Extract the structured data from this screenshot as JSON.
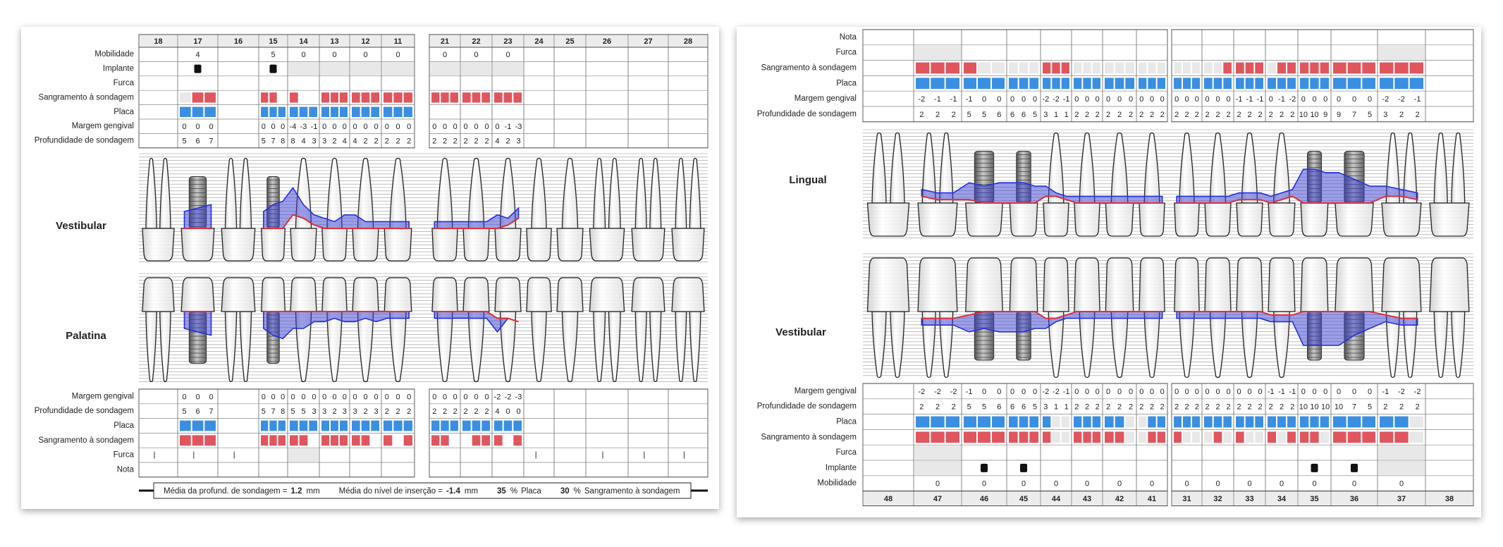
{
  "left": {
    "teeth": [
      18,
      17,
      16,
      15,
      14,
      13,
      12,
      11,
      21,
      22,
      23,
      24,
      25,
      26,
      27,
      28
    ],
    "mobility": {
      "label": "Mobilidade",
      "values": [
        null,
        4,
        null,
        5,
        0,
        0,
        0,
        0,
        0,
        0,
        0,
        null,
        null,
        null,
        null,
        null
      ]
    },
    "implant": {
      "label": "Implante"
    },
    "furcation": {
      "label": "Furca"
    },
    "bleeding_top": {
      "label": "Sangramento à sondagem"
    },
    "plaque_top": {
      "label": "Placa"
    },
    "margin_top": {
      "label": "Margem gengival",
      "values": [
        null,
        [
          0,
          0,
          0
        ],
        null,
        [
          0,
          0,
          0
        ],
        [
          -4,
          -3,
          -1
        ],
        [
          0,
          0,
          0
        ],
        [
          0,
          0,
          0
        ],
        [
          0,
          0,
          0
        ],
        [
          0,
          0,
          0
        ],
        [
          0,
          0,
          0
        ],
        [
          0,
          -1,
          -3
        ],
        null,
        null,
        null,
        null,
        null
      ]
    },
    "depth_top": {
      "label": "Profundidade de sondagem",
      "values": [
        null,
        [
          5,
          6,
          7
        ],
        null,
        [
          5,
          7,
          8
        ],
        [
          8,
          4,
          3
        ],
        [
          3,
          2,
          4
        ],
        [
          4,
          2,
          2
        ],
        [
          2,
          2,
          2
        ],
        [
          2,
          2,
          2
        ],
        [
          2,
          2,
          2
        ],
        [
          4,
          2,
          3
        ],
        null,
        null,
        null,
        null,
        null
      ]
    },
    "view_top": "Vestibular",
    "view_bottom": "Palatina",
    "margin_bottom": {
      "label": "Margem gengival",
      "values": [
        null,
        [
          0,
          0,
          0
        ],
        null,
        [
          0,
          0,
          0
        ],
        [
          0,
          0,
          0
        ],
        [
          0,
          0,
          0
        ],
        [
          0,
          0,
          0
        ],
        [
          0,
          0,
          0
        ],
        [
          0,
          0,
          0
        ],
        [
          0,
          0,
          0
        ],
        [
          -2,
          -2,
          -3
        ],
        null,
        null,
        null,
        null,
        null
      ]
    },
    "depth_bottom": {
      "label": "Profundidade de sondagem",
      "values": [
        null,
        [
          5,
          6,
          7
        ],
        null,
        [
          5,
          7,
          8
        ],
        [
          5,
          5,
          3
        ],
        [
          3,
          2,
          3
        ],
        [
          3,
          2,
          3
        ],
        [
          2,
          2,
          2
        ],
        [
          2,
          2,
          2
        ],
        [
          2,
          2,
          2
        ],
        [
          4,
          0,
          0
        ],
        null,
        null,
        null,
        null,
        null
      ]
    },
    "plaque_bottom": {
      "label": "Placa"
    },
    "bleeding_bottom": {
      "label": "Sangramento à sondagem"
    },
    "furcation_bottom": {
      "label": "Furca"
    },
    "note": {
      "label": "Nota"
    },
    "summary": [
      {
        "label": "Média da profund. de sondagem =",
        "value": 1.2,
        "unit": "mm"
      },
      {
        "label": "Média do nível de inserção =",
        "value": -1.4,
        "unit": "mm"
      },
      {
        "value": 35,
        "unit": "%",
        "label": "Placa"
      },
      {
        "value": 30,
        "unit": "%",
        "label": "Sangramento à sondagem"
      }
    ]
  },
  "right": {
    "teeth": [
      48,
      47,
      46,
      45,
      44,
      43,
      42,
      41,
      31,
      32,
      33,
      34,
      35,
      36,
      37,
      38
    ],
    "note": {
      "label": "Nota"
    },
    "furcation": {
      "label": "Furca"
    },
    "bleeding_top": {
      "label": "Sangramento à sondagem"
    },
    "plaque_top": {
      "label": "Placa"
    },
    "margin_top": {
      "label": "Margem gengival",
      "values": [
        null,
        [
          -2,
          -1,
          -1
        ],
        [
          -1,
          0,
          0
        ],
        [
          0,
          0,
          0
        ],
        [
          -2,
          -2,
          -1
        ],
        [
          0,
          0,
          0
        ],
        [
          0,
          0,
          0
        ],
        [
          0,
          0,
          0
        ],
        [
          0,
          0,
          0
        ],
        [
          0,
          0,
          0
        ],
        [
          -1,
          -1,
          -1
        ],
        [
          0,
          -1,
          -2
        ],
        [
          0,
          0,
          0
        ],
        [
          0,
          0,
          0
        ],
        [
          -2,
          -2,
          -1
        ],
        null
      ]
    },
    "depth_top": {
      "label": "Profundidade de sondagem",
      "values": [
        null,
        [
          2,
          2,
          2
        ],
        [
          5,
          5,
          6
        ],
        [
          6,
          6,
          5
        ],
        [
          3,
          1,
          1
        ],
        [
          2,
          2,
          2
        ],
        [
          2,
          2,
          2
        ],
        [
          2,
          2,
          2
        ],
        [
          2,
          2,
          2
        ],
        [
          2,
          2,
          2
        ],
        [
          2,
          2,
          2
        ],
        [
          2,
          2,
          2
        ],
        [
          10,
          10,
          9
        ],
        [
          9,
          7,
          5
        ],
        [
          3,
          2,
          2
        ],
        null
      ]
    },
    "view_top": "Lingual",
    "view_bottom": "Vestibular",
    "margin_bottom": {
      "label": "Margem gengival",
      "values": [
        null,
        [
          -2,
          -2,
          -2
        ],
        [
          -1,
          0,
          0
        ],
        [
          0,
          0,
          0
        ],
        [
          -2,
          -2,
          -1
        ],
        [
          0,
          0,
          0
        ],
        [
          0,
          0,
          0
        ],
        [
          0,
          0,
          0
        ],
        [
          0,
          0,
          0
        ],
        [
          0,
          0,
          0
        ],
        [
          0,
          0,
          0
        ],
        [
          -1,
          -1,
          -1
        ],
        [
          0,
          0,
          0
        ],
        [
          0,
          0,
          0
        ],
        [
          -1,
          -2,
          -2
        ],
        null
      ]
    },
    "depth_bottom": {
      "label": "Profundidade de sondagem",
      "values": [
        null,
        [
          2,
          2,
          2
        ],
        [
          5,
          5,
          6
        ],
        [
          6,
          6,
          5
        ],
        [
          3,
          1,
          1
        ],
        [
          2,
          2,
          2
        ],
        [
          2,
          2,
          2
        ],
        [
          2,
          2,
          2
        ],
        [
          2,
          2,
          2
        ],
        [
          2,
          2,
          2
        ],
        [
          2,
          2,
          2
        ],
        [
          2,
          2,
          2
        ],
        [
          10,
          10,
          10
        ],
        [
          10,
          7,
          5
        ],
        [
          2,
          2,
          2
        ],
        null
      ]
    },
    "plaque_bottom": {
      "label": "Placa"
    },
    "bleeding_bottom": {
      "label": "Sangramento à sondagem"
    },
    "furcation_bottom": {
      "label": "Furca"
    },
    "implant": {
      "label": "Implante"
    },
    "mobility": {
      "label": "Mobilidade",
      "values": [
        null,
        0,
        0,
        0,
        0,
        0,
        0,
        0,
        0,
        0,
        0,
        0,
        0,
        0,
        0,
        null
      ]
    }
  }
}
